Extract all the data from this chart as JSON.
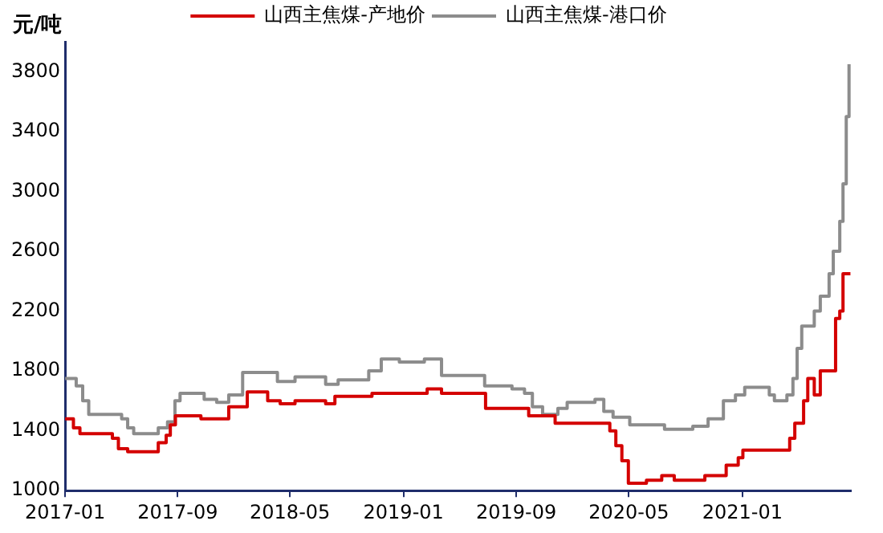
{
  "chart_data": {
    "type": "step",
    "ylabel": "元/吨",
    "legend": "top",
    "grid": false,
    "marker": "none",
    "line_style": "solid",
    "xlim": [
      "2017-01-01",
      "2021-08-23"
    ],
    "ylim": [
      1000,
      4000
    ],
    "xticks": [
      "2017-01",
      "2017-09",
      "2018-05",
      "2019-01",
      "2019-09",
      "2020-05",
      "2021-01"
    ],
    "yticks": [
      1000,
      1400,
      1800,
      2200,
      2600,
      3000,
      3400,
      3800
    ],
    "series": [
      {
        "name": "山西主焦煤-产地价",
        "color": "#d40000",
        "x": [
          "2017-01-01",
          "2017-01-19",
          "2017-02-02",
          "2017-04-13",
          "2017-04-26",
          "2017-05-16",
          "2017-07-21",
          "2017-08-07",
          "2017-08-16",
          "2017-08-27",
          "2017-10-21",
          "2017-12-20",
          "2018-01-29",
          "2018-03-14",
          "2018-04-10",
          "2018-05-12",
          "2018-07-17",
          "2018-08-06",
          "2018-10-25",
          "2019-02-21",
          "2019-03-24",
          "2019-06-27",
          "2019-09-28",
          "2019-11-24",
          "2020-03-08",
          "2020-03-21",
          "2020-04-03",
          "2020-04-16",
          "2020-04-30",
          "2020-06-08",
          "2020-07-11",
          "2020-08-07",
          "2020-10-12",
          "2020-11-27",
          "2020-12-23",
          "2021-01-02",
          "2021-04-13",
          "2021-04-24",
          "2021-05-13",
          "2021-05-22",
          "2021-06-05",
          "2021-06-18",
          "2021-07-21",
          "2021-07-30",
          "2021-08-06",
          "2021-08-22"
        ],
        "values": [
          1480,
          1420,
          1380,
          1350,
          1280,
          1260,
          1320,
          1370,
          1440,
          1500,
          1480,
          1560,
          1660,
          1600,
          1580,
          1600,
          1580,
          1630,
          1650,
          1680,
          1650,
          1550,
          1500,
          1450,
          1450,
          1400,
          1300,
          1200,
          1050,
          1070,
          1100,
          1070,
          1100,
          1170,
          1220,
          1270,
          1350,
          1450,
          1600,
          1750,
          1640,
          1800,
          2150,
          2200,
          2450,
          2450
        ]
      },
      {
        "name": "山西主焦煤-港口价",
        "color": "#8c8c8c",
        "x": [
          "2017-01-01",
          "2017-01-25",
          "2017-02-08",
          "2017-02-21",
          "2017-05-03",
          "2017-05-16",
          "2017-05-29",
          "2017-07-21",
          "2017-08-10",
          "2017-08-26",
          "2017-09-06",
          "2017-10-28",
          "2017-11-24",
          "2017-12-20",
          "2018-01-19",
          "2018-04-04",
          "2018-05-12",
          "2018-07-17",
          "2018-08-13",
          "2018-10-18",
          "2018-11-14",
          "2018-12-23",
          "2019-02-15",
          "2019-03-24",
          "2019-06-25",
          "2019-08-23",
          "2019-09-19",
          "2019-10-06",
          "2019-10-28",
          "2019-11-30",
          "2019-12-20",
          "2020-02-18",
          "2020-03-08",
          "2020-03-28",
          "2020-05-03",
          "2020-07-17",
          "2020-09-16",
          "2020-10-19",
          "2020-11-21",
          "2020-12-17",
          "2021-01-06",
          "2021-02-28",
          "2021-03-11",
          "2021-04-07",
          "2021-04-20",
          "2021-04-29",
          "2021-05-09",
          "2021-06-05",
          "2021-06-18",
          "2021-07-07",
          "2021-07-16",
          "2021-07-30",
          "2021-08-06",
          "2021-08-13",
          "2021-08-19"
        ],
        "values": [
          1750,
          1700,
          1600,
          1510,
          1480,
          1420,
          1380,
          1420,
          1460,
          1600,
          1650,
          1610,
          1590,
          1640,
          1790,
          1730,
          1760,
          1710,
          1740,
          1800,
          1880,
          1860,
          1880,
          1770,
          1700,
          1680,
          1650,
          1560,
          1510,
          1550,
          1590,
          1610,
          1530,
          1490,
          1440,
          1410,
          1430,
          1480,
          1600,
          1640,
          1690,
          1640,
          1600,
          1640,
          1750,
          1950,
          2100,
          2200,
          2300,
          2450,
          2600,
          2800,
          3050,
          3500,
          3850
        ]
      }
    ]
  }
}
